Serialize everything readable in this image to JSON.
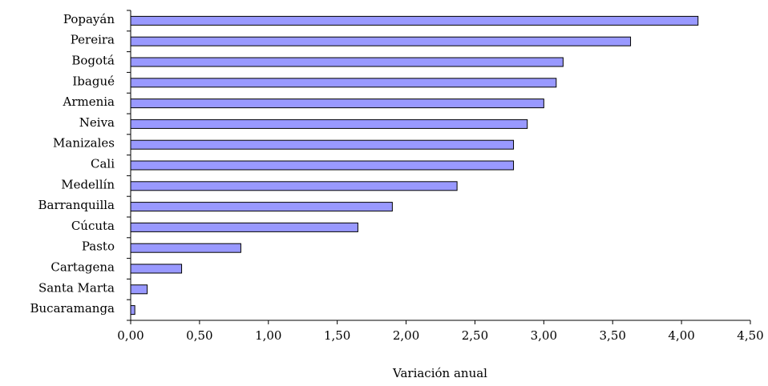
{
  "chart_data": {
    "type": "hbar",
    "xlabel": "Variación anual",
    "categories": [
      "Popayán",
      "Pereira",
      "Bogotá",
      "Ibagué",
      "Armenia",
      "Neiva",
      "Manizales",
      "Cali",
      "Medellín",
      "Barranquilla",
      "Cúcuta",
      "Pasto",
      "Cartagena",
      "Santa Marta",
      "Bucaramanga"
    ],
    "values": [
      4.12,
      3.63,
      3.14,
      3.09,
      3.0,
      2.88,
      2.78,
      2.78,
      2.37,
      1.9,
      1.65,
      0.8,
      0.37,
      0.12,
      0.03
    ],
    "color": "#9999ff",
    "xlim": [
      0,
      4.5
    ],
    "xticks": [
      {
        "value": 0,
        "label": "0,00"
      },
      {
        "value": 0.5,
        "label": "0,50"
      },
      {
        "value": 1,
        "label": "1,00"
      },
      {
        "value": 1.5,
        "label": "1,50"
      },
      {
        "value": 2,
        "label": "2,00"
      },
      {
        "value": 2.5,
        "label": "2,50"
      },
      {
        "value": 3,
        "label": "3,00"
      },
      {
        "value": 3.5,
        "label": "3,50"
      },
      {
        "value": 4,
        "label": "4,00"
      },
      {
        "value": 4.5,
        "label": "4,50"
      }
    ]
  }
}
